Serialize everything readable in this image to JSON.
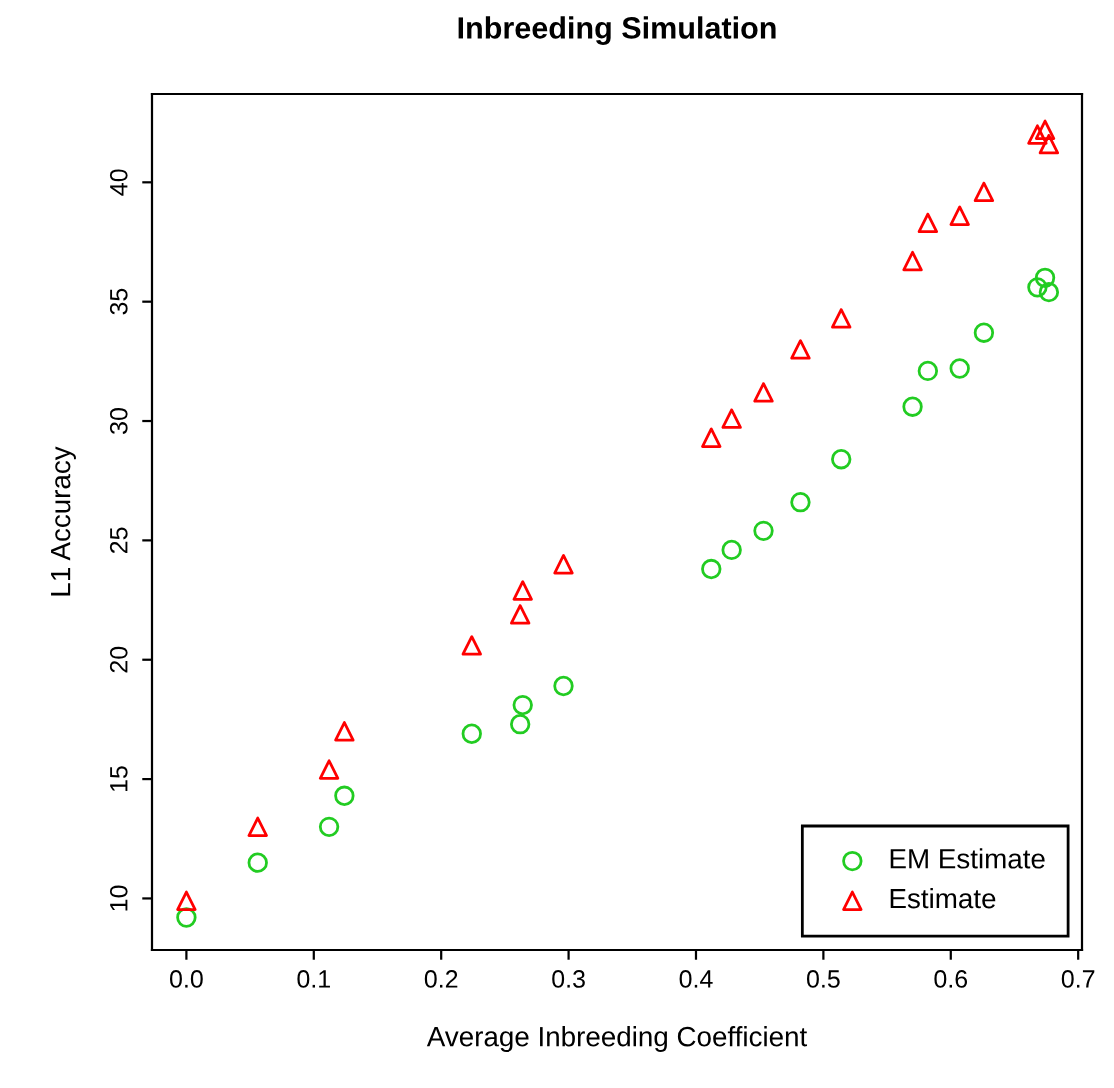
{
  "chart_data": {
    "type": "scatter",
    "title": "Inbreeding Simulation",
    "xlabel": "Average Inbreeding Coefficient",
    "ylabel": "L1 Accuracy",
    "xlim": [
      -0.027,
      0.703
    ],
    "ylim": [
      7.84,
      43.7
    ],
    "xticks": [
      {
        "value": 0,
        "label": "0.0"
      },
      0.1,
      0.2,
      0.3,
      0.4,
      0.5,
      0.6,
      0.7
    ],
    "yticks": [
      10,
      15,
      20,
      25,
      30,
      35,
      40
    ],
    "grid": false,
    "legend": "bottom right",
    "series": [
      {
        "name": "EM Estimate",
        "color": "#22cc22",
        "marker": "circle",
        "x": [
          0,
          0.056,
          0.112,
          0.124,
          0.224,
          0.262,
          0.264,
          0.296,
          0.412,
          0.428,
          0.453,
          0.482,
          0.514,
          0.57,
          0.582,
          0.607,
          0.626,
          0.668,
          0.674,
          0.677
        ],
        "values": [
          9.2,
          11.5,
          13.0,
          14.3,
          16.9,
          17.3,
          18.1,
          18.9,
          23.8,
          24.6,
          25.4,
          26.6,
          28.4,
          30.6,
          32.1,
          32.2,
          33.7,
          35.6,
          36.0,
          35.4
        ]
      },
      {
        "name": "Estimate",
        "color": "#ff0000",
        "marker": "triangle",
        "x": [
          0,
          0.056,
          0.112,
          0.124,
          0.224,
          0.262,
          0.264,
          0.296,
          0.412,
          0.428,
          0.453,
          0.482,
          0.514,
          0.57,
          0.582,
          0.607,
          0.626,
          0.668,
          0.674,
          0.677
        ],
        "values": [
          9.9,
          13.0,
          15.4,
          17.0,
          20.6,
          21.9,
          22.9,
          24.0,
          29.3,
          30.1,
          31.2,
          33.0,
          34.3,
          36.7,
          38.3,
          38.6,
          39.6,
          42.0,
          42.2,
          41.6
        ]
      }
    ]
  }
}
